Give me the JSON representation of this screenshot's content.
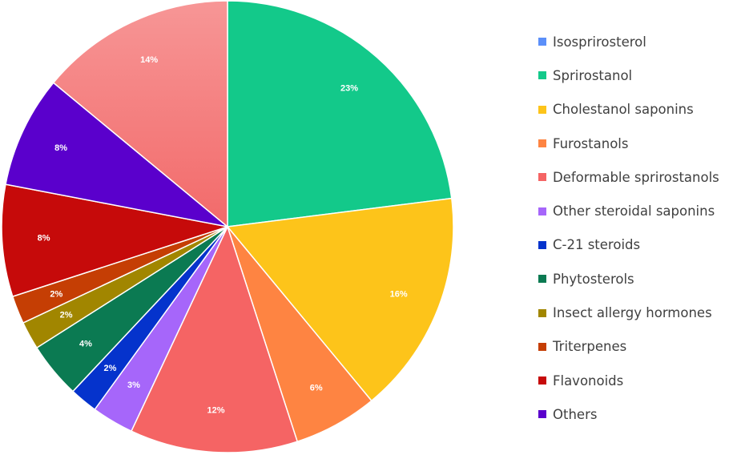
{
  "chart_data": {
    "type": "pie",
    "series": [
      {
        "name": "Isosprirosterol",
        "value": 0,
        "label": "",
        "color": "#5B8FF9"
      },
      {
        "name": "Sprirostanol",
        "value": 23,
        "label": "23%",
        "color": "#13C98A"
      },
      {
        "name": "Cholestanol saponins",
        "value": 16,
        "label": "16%",
        "color": "#FDC41A"
      },
      {
        "name": "Furostanols",
        "value": 6,
        "label": "6%",
        "color": "#FE8442"
      },
      {
        "name": "Deformable sprirostanols",
        "value": 12,
        "label": "12%",
        "color": "#F56464"
      },
      {
        "name": "Other steroidal saponins",
        "value": 3,
        "label": "3%",
        "color": "#A666FA"
      },
      {
        "name": "C-21 steroids",
        "value": 2,
        "label": "2%",
        "color": "#0533CC"
      },
      {
        "name": "Phytosterols",
        "value": 4,
        "label": "4%",
        "color": "#0B7A52"
      },
      {
        "name": "Insect allergy hormones",
        "value": 2,
        "label": "2%",
        "color": "#A18600"
      },
      {
        "name": "Triterpenes",
        "value": 2,
        "label": "2%",
        "color": "#C53E04"
      },
      {
        "name": "Flavonoids",
        "value": 8,
        "label": "8%",
        "color": "#C60A0A"
      },
      {
        "name": "Others",
        "value": 8,
        "label": "8%",
        "color": "#5A00CC"
      },
      {
        "name": "",
        "value": 14,
        "label": "14%",
        "color": "#F79696",
        "gradient_to": "#F26A6A",
        "in_legend": false
      }
    ],
    "legend_position": "right",
    "start_angle_deg": 0,
    "direction": "clockwise"
  }
}
